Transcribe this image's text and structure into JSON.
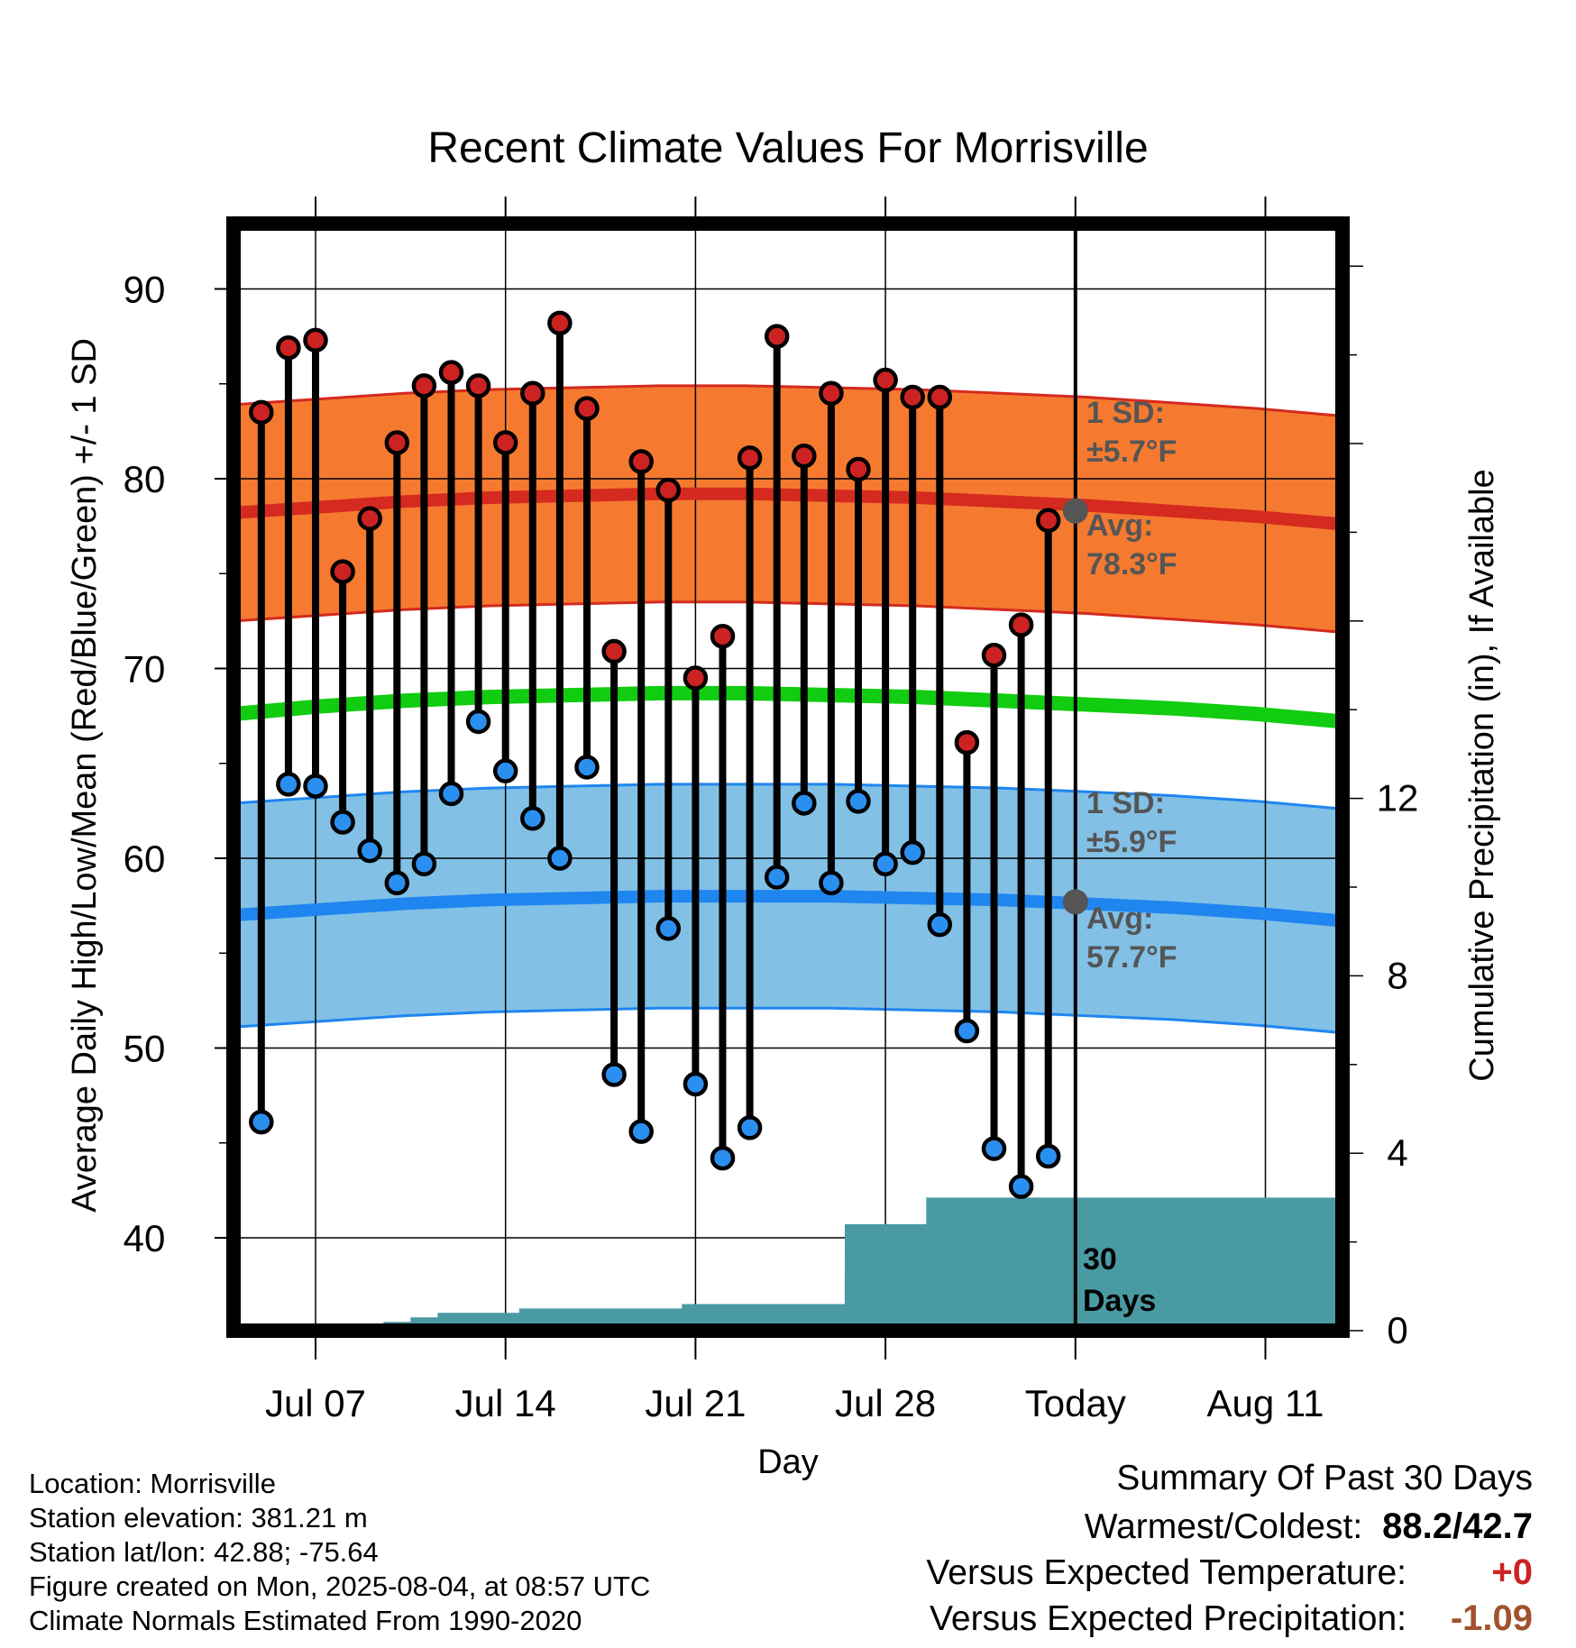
{
  "chart_data": {
    "type": "line",
    "title": "Recent Climate Values For Morrisville",
    "xlabel": "Day",
    "ylabel": "Average Daily High/Low/Mean (Red/Blue/Green) +/- 1 SD",
    "y2label": "Cumulative Precipitation (in), If Available",
    "ylim": [
      35,
      92
    ],
    "y2lim": [
      0,
      24
    ],
    "y_ticks": [
      "40",
      "50",
      "60",
      "70",
      "80",
      "90"
    ],
    "y2_ticks": [
      "0",
      "4",
      "8",
      "12"
    ],
    "x_tick_labels": [
      "Jul 07",
      "Jul 14",
      "Jul 21",
      "Jul 28",
      "Today",
      "Aug 11"
    ],
    "dates": [
      "Jul 05",
      "Jul 06",
      "Jul 07",
      "Jul 08",
      "Jul 09",
      "Jul 10",
      "Jul 11",
      "Jul 12",
      "Jul 13",
      "Jul 14",
      "Jul 15",
      "Jul 16",
      "Jul 17",
      "Jul 18",
      "Jul 19",
      "Jul 20",
      "Jul 21",
      "Jul 22",
      "Jul 23",
      "Jul 24",
      "Jul 25",
      "Jul 26",
      "Jul 27",
      "Jul 28",
      "Jul 29",
      "Jul 30",
      "Jul 31",
      "Aug 01",
      "Aug 02",
      "Aug 03"
    ],
    "series": [
      {
        "name": "High",
        "color": "#cc2222",
        "values": [
          83.5,
          86.9,
          87.3,
          75.1,
          77.9,
          81.9,
          84.9,
          85.6,
          84.9,
          81.9,
          84.5,
          88.2,
          83.7,
          70.9,
          80.9,
          79.4,
          69.5,
          71.7,
          81.1,
          87.5,
          81.2,
          84.5,
          80.5,
          85.2,
          84.3,
          84.3,
          66.1,
          70.7,
          72.3,
          77.8
        ]
      },
      {
        "name": "Low",
        "color": "#2b8ff0",
        "values": [
          46.1,
          63.9,
          63.8,
          61.9,
          60.4,
          58.7,
          59.7,
          63.4,
          67.2,
          64.6,
          62.1,
          60.0,
          64.8,
          48.6,
          45.6,
          56.3,
          48.1,
          44.2,
          45.8,
          59.0,
          62.9,
          58.7,
          63.0,
          59.7,
          60.3,
          56.5,
          50.9,
          44.7,
          42.7,
          44.3
        ]
      },
      {
        "name": "Cumulative Precipitation",
        "values": [
          0,
          0,
          0,
          0,
          0,
          0.2,
          0.3,
          0.4,
          0.4,
          0.4,
          0.5,
          0.5,
          0.5,
          0.5,
          0.5,
          0.5,
          0.6,
          0.6,
          0.6,
          0.6,
          0.6,
          0.6,
          2.4,
          2.4,
          2.4,
          3.0,
          3.0,
          3.0,
          3.0,
          3.0
        ]
      }
    ],
    "normals": {
      "high_avg_label": "Avg:",
      "high_avg": "78.3°F",
      "high_sd_label": "1 SD:",
      "high_sd": "±5.7°F",
      "low_avg_label": "Avg:",
      "low_avg": "57.7°F",
      "low_sd_label": "1 SD:",
      "low_sd": "±5.9°F",
      "high_curve": [
        78.2,
        78.5,
        78.8,
        79.0,
        79.1,
        79.2,
        79.2,
        79.1,
        79.0,
        78.8,
        78.6,
        78.3,
        78.0,
        77.6
      ],
      "low_curve": [
        57.0,
        57.3,
        57.6,
        57.8,
        57.9,
        58.0,
        58.0,
        58.0,
        57.9,
        57.8,
        57.6,
        57.4,
        57.1,
        56.7
      ],
      "mean_curve": [
        67.6,
        68.0,
        68.3,
        68.5,
        68.6,
        68.7,
        68.7,
        68.6,
        68.5,
        68.3,
        68.1,
        67.9,
        67.6,
        67.2
      ],
      "high_sd_value": 5.7,
      "low_sd_value": 5.9,
      "colors": {
        "high_band": "#f57a30",
        "low_band": "#82c0e6",
        "mean": "#11cc11",
        "precip": "#4a9aa4"
      }
    },
    "period_label": "30",
    "period_unit": "Days",
    "grid": true
  },
  "info": {
    "location": "Location: Morrisville",
    "elevation": "Station elevation: 381.21 m",
    "latlon": "Station lat/lon: 42.88; -75.64",
    "created": "Figure created on Mon, 2025-08-04, at 08:57 UTC",
    "normals": "Climate Normals Estimated From 1990-2020"
  },
  "summary": {
    "title": "Summary Of Past 30 Days",
    "warm_cold_label": "Warmest/Coldest:",
    "warm_cold_value": "88.2/42.7",
    "temp_label": "Versus Expected Temperature:",
    "temp_value": "+0",
    "temp_color": "#cc2222",
    "precip_label": "Versus Expected Precipitation:",
    "precip_value": "-1.09",
    "precip_color": "#a0522d"
  }
}
